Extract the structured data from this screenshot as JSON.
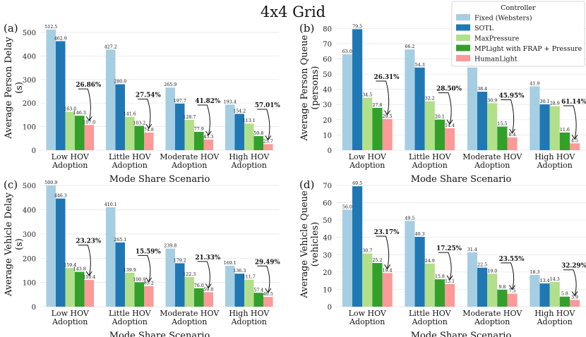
{
  "figure_title": "4x4 Grid",
  "legend": {
    "title": "Controller",
    "entries": [
      {
        "label": "Fixed (Websters)",
        "color": "#a6cee3"
      },
      {
        "label": "SOTL",
        "color": "#1f78b4"
      },
      {
        "label": "MaxPressure",
        "color": "#b2df8a"
      },
      {
        "label": "MPLight with FRAP + Pressure",
        "color": "#33a02c"
      },
      {
        "label": "HumanLight",
        "color": "#fb9a99"
      }
    ]
  },
  "chart_data": [
    {
      "type": "bar",
      "panel_label": "(a)",
      "ylabel": [
        "Average Person Delay",
        "(s)"
      ],
      "xlabel": "Mode Share Scenario",
      "categories": [
        [
          "Low HOV",
          "Adoption"
        ],
        [
          "Little HOV",
          "Adoption"
        ],
        [
          "Moderate HOV",
          "Adoption"
        ],
        [
          "High HOV",
          "Adoption"
        ]
      ],
      "ylim": [
        0,
        530
      ],
      "yticks": [
        0,
        100,
        200,
        300,
        400,
        500
      ],
      "series": [
        {
          "name": "Fixed (Websters)",
          "values": [
            512.5,
            427.2,
            265.9,
            193.4
          ],
          "labels": [
            "512.5",
            "427.2",
            "265.9",
            "193.4"
          ]
        },
        {
          "name": "SOTL",
          "values": [
            462.9,
            280.0,
            197.7,
            154.2
          ],
          "labels": [
            "462.9",
            "280.0",
            "197.7",
            "154.2"
          ]
        },
        {
          "name": "MaxPressure",
          "values": [
            163.0,
            141.6,
            128.7,
            113.1
          ],
          "labels": [
            "163.0",
            "141.6",
            "128.7",
            "113.1"
          ]
        },
        {
          "name": "MPLight with FRAP + Pressure",
          "values": [
            146.3,
            103.2,
            77.9,
            59.8
          ],
          "labels": [
            "146.3",
            "103.2",
            "77.9",
            "59.8"
          ]
        },
        {
          "name": "HumanLight",
          "values": [
            107.0,
            74.8,
            45.3,
            25.7
          ],
          "labels": [
            "107.0",
            "74.8",
            "45.3",
            "25.7"
          ]
        }
      ],
      "improvements": [
        "26.86%",
        "27.54%",
        "41.82%",
        "57.01%"
      ]
    },
    {
      "type": "bar",
      "panel_label": "(b)",
      "ylabel": [
        "Average Person Queue",
        "(persons)"
      ],
      "xlabel": "Mode Share Scenario",
      "categories": [
        [
          "Low HOV",
          "Adoption"
        ],
        [
          "Little HOV",
          "Adoption"
        ],
        [
          "Moderate HOV",
          "Adoption"
        ],
        [
          "High HOV",
          "Adoption"
        ]
      ],
      "ylim": [
        0,
        82
      ],
      "yticks": [
        0,
        10,
        20,
        30,
        40,
        50,
        60,
        70,
        80
      ],
      "series": [
        {
          "name": "Fixed (Websters)",
          "values": [
            63.0,
            66.2,
            54.3,
            41.9
          ],
          "labels": [
            "63.0",
            "66.2",
            "54.3",
            "41.9"
          ]
        },
        {
          "name": "SOTL",
          "values": [
            79.5,
            54.3,
            38.4,
            30.1
          ],
          "labels": [
            "79.5",
            "54.3",
            "38.4",
            "30.1"
          ]
        },
        {
          "name": "MaxPressure",
          "values": [
            34.5,
            32.2,
            30.9,
            28.9
          ],
          "labels": [
            "34.5",
            "32.2",
            "30.9",
            "28.9"
          ]
        },
        {
          "name": "MPLight with FRAP + Pressure",
          "values": [
            27.8,
            20.1,
            15.5,
            11.6
          ],
          "labels": [
            "27.8",
            "20.1",
            "15.5",
            "11.6"
          ]
        },
        {
          "name": "HumanLight",
          "values": [
            20.5,
            14.4,
            8.4,
            4.5
          ],
          "labels": [
            "20.5",
            "14.4",
            "8.4",
            "4.5"
          ]
        }
      ],
      "improvements": [
        "26.31%",
        "28.50%",
        "45.95%",
        "61.14%"
      ]
    },
    {
      "type": "bar",
      "panel_label": "(c)",
      "ylabel": [
        "Average Vehicle Delay",
        "(s)"
      ],
      "xlabel": "Mode Share Scenario",
      "categories": [
        [
          "Low HOV",
          "Adoption"
        ],
        [
          "Little HOV",
          "Adoption"
        ],
        [
          "Moderate HOV",
          "Adoption"
        ],
        [
          "High HOV",
          "Adoption"
        ]
      ],
      "ylim": [
        0,
        515
      ],
      "yticks": [
        0,
        100,
        200,
        300,
        400,
        500
      ],
      "series": [
        {
          "name": "Fixed (Websters)",
          "values": [
            500.9,
            410.1,
            239.8,
            169.1
          ],
          "labels": [
            "500.9",
            "410.1",
            "239.8",
            "169.1"
          ]
        },
        {
          "name": "SOTL",
          "values": [
            446.3,
            265.1,
            179.2,
            136.3
          ],
          "labels": [
            "446.3",
            "265.1",
            "179.2",
            "136.3"
          ]
        },
        {
          "name": "MaxPressure",
          "values": [
            159.4,
            139.9,
            122.3,
            111.7
          ],
          "labels": [
            "159.4",
            "139.9",
            "122.3",
            "111.7"
          ]
        },
        {
          "name": "MPLight with FRAP + Pressure",
          "values": [
            143.8,
            100.9,
            76.0,
            57.4
          ],
          "labels": [
            "143.8",
            "100.9",
            "76.0",
            "57.4"
          ]
        },
        {
          "name": "HumanLight",
          "values": [
            110.4,
            85.2,
            59.8,
            40.5
          ],
          "labels": [
            "110.4",
            "85.2",
            "59.8",
            "40.5"
          ]
        }
      ],
      "improvements": [
        "23.23%",
        "15.59%",
        "21.33%",
        "29.49%"
      ]
    },
    {
      "type": "bar",
      "panel_label": "(d)",
      "ylabel": [
        "Average Vehicle Queue",
        "(vehicles)"
      ],
      "xlabel": "Mode Share Scenario",
      "categories": [
        [
          "Low HOV",
          "Adoption"
        ],
        [
          "Little HOV",
          "Adoption"
        ],
        [
          "Moderate HOV",
          "Adoption"
        ],
        [
          "High HOV",
          "Adoption"
        ]
      ],
      "ylim": [
        0,
        72
      ],
      "yticks": [
        0,
        10,
        20,
        30,
        40,
        50,
        60,
        70
      ],
      "series": [
        {
          "name": "Fixed (Websters)",
          "values": [
            56.0,
            49.5,
            31.4,
            18.3
          ],
          "labels": [
            "56.0",
            "49.5",
            "31.4",
            "18.3"
          ]
        },
        {
          "name": "SOTL",
          "values": [
            69.5,
            40.3,
            22.5,
            13.4
          ],
          "labels": [
            "69.5",
            "40.3",
            "22.5",
            "13.4"
          ]
        },
        {
          "name": "MaxPressure",
          "values": [
            30.7,
            24.9,
            19.0,
            14.3
          ],
          "labels": [
            "30.7",
            "24.9",
            "19.0",
            "14.3"
          ]
        },
        {
          "name": "MPLight with FRAP + Pressure",
          "values": [
            25.2,
            15.8,
            9.8,
            5.8
          ],
          "labels": [
            "25.2",
            "15.8",
            "9.8",
            "5.8"
          ]
        },
        {
          "name": "HumanLight",
          "values": [
            19.4,
            13.1,
            7.5,
            3.9
          ],
          "labels": [
            "19.4",
            "13.1",
            "7.5",
            "3.9"
          ]
        }
      ],
      "improvements": [
        "23.17%",
        "17.25%",
        "23.55%",
        "32.29%"
      ]
    }
  ]
}
